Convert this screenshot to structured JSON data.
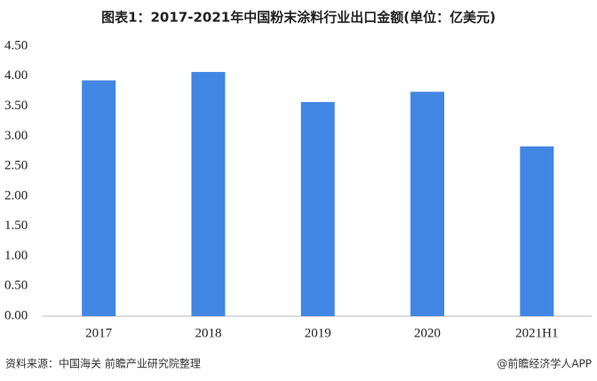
{
  "chart_data": {
    "type": "bar",
    "title": "图表1：2017-2021年中国粉末涂料行业出口金额(单位：亿美元)",
    "categories": [
      "2017",
      "2018",
      "2019",
      "2020",
      "2021H1"
    ],
    "values": [
      3.93,
      4.07,
      3.57,
      3.74,
      2.83
    ],
    "color": "#4286e3",
    "ylim": [
      0,
      4.5
    ],
    "yticks": [
      {
        "value": 0,
        "label": "0.00"
      },
      {
        "value": 0.5,
        "label": "0.50"
      },
      {
        "value": 1,
        "label": "1.00"
      },
      {
        "value": 1.5,
        "label": "1.50"
      },
      {
        "value": 2,
        "label": "2.00"
      },
      {
        "value": 2.5,
        "label": "2.50"
      },
      {
        "value": 3,
        "label": "3.00"
      },
      {
        "value": 3.5,
        "label": "3.50"
      },
      {
        "value": 4,
        "label": "4.00"
      },
      {
        "value": 4.5,
        "label": "4.50"
      }
    ],
    "grid": false,
    "source": "资料来源：中国海关 前瞻产业研究院整理",
    "credit": "@前瞻经济学人APP"
  }
}
